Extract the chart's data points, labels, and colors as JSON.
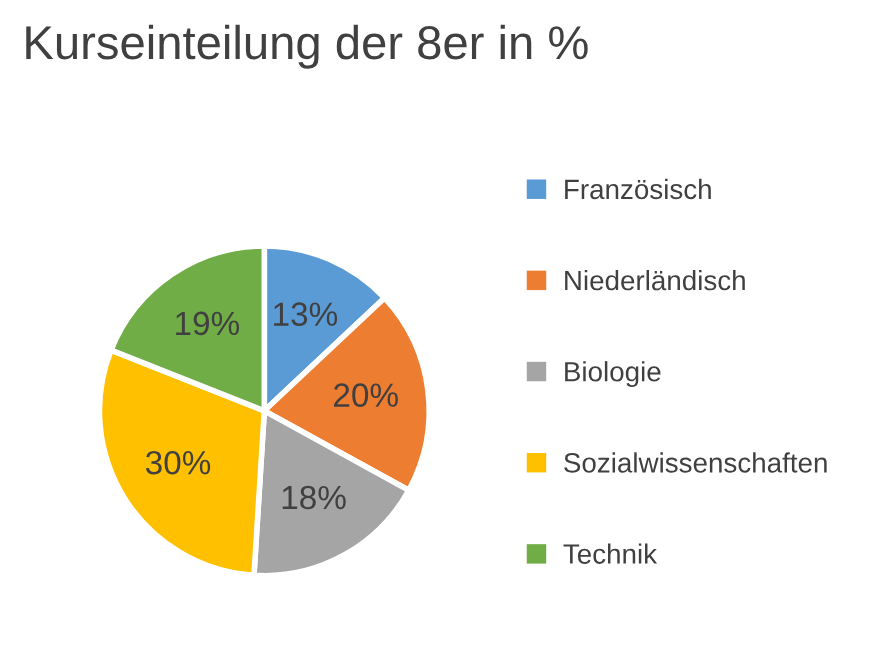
{
  "chart_data": {
    "type": "pie",
    "title": "Kurseinteilung der 8er in %",
    "categories": [
      "Französisch",
      "Niederländisch",
      "Biologie",
      "Sozialwissenschaften",
      "Technik"
    ],
    "values": [
      13,
      20,
      18,
      30,
      19
    ],
    "colors": [
      "#5b9bd5",
      "#ed7d31",
      "#a5a5a5",
      "#ffc000",
      "#70ad47"
    ],
    "value_labels": [
      "13%",
      "20%",
      "18%",
      "30%",
      "19%"
    ],
    "legend": "right"
  }
}
